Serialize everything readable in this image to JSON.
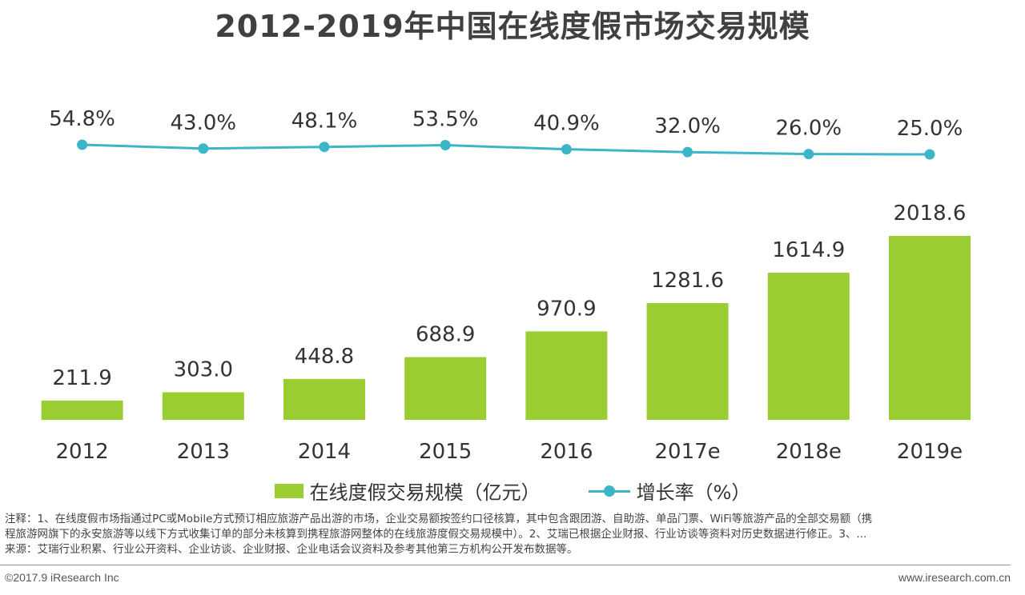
{
  "title": "2012-2019年中国在线度假市场交易规模",
  "chart_data": {
    "type": "bar",
    "categories": [
      "2012",
      "2013",
      "2014",
      "2015",
      "2016",
      "2017e",
      "2018e",
      "2019e"
    ],
    "series": [
      {
        "name": "在线度假交易规模（亿元）",
        "type": "bar",
        "values": [
          211.9,
          303.0,
          448.8,
          688.9,
          970.9,
          1281.6,
          1614.9,
          2018.6
        ],
        "labels": [
          "211.9",
          "303.0",
          "448.8",
          "688.9",
          "970.9",
          "1281.6",
          "1614.9",
          "2018.6"
        ]
      },
      {
        "name": "增长率（%）",
        "type": "line",
        "values": [
          54.8,
          43.0,
          48.1,
          53.5,
          40.9,
          32.0,
          26.0,
          25.0
        ],
        "labels": [
          "54.8%",
          "43.0%",
          "48.1%",
          "53.5%",
          "40.9%",
          "32.0%",
          "26.0%",
          "25.0%"
        ]
      }
    ],
    "colors": {
      "bar": "#9ACD32",
      "line": "#3BB5C8"
    },
    "legend_position": "bottom",
    "grid": false
  },
  "legend": {
    "bar_label": "在线度假交易规模（亿元）",
    "line_label": "增长率（%）"
  },
  "note": {
    "line1": "注释：1、在线度假市场指通过PC或Mobile方式预订相应旅游产品出游的市场，企业交易额按签约口径核算，其中包含跟团游、自助游、单品门票、WiFi等旅游产品的全部交易额（携",
    "line2": "程旅游网旗下的永安旅游等以线下方式收集订单的部分未核算到携程旅游网整体的在线旅游度假交易规模中）。2、艾瑞已根据企业财报、行业访谈等资料对历史数据进行修正。3、...",
    "line3": "来源：艾瑞行业积累、行业公开资料、企业访谈、企业财报、企业电话会议资料及参考其他第三方机构公开发布数据等。"
  },
  "footer": {
    "copyright": "©2017.9 iResearch Inc",
    "website": "www.iresearch.com.cn"
  }
}
